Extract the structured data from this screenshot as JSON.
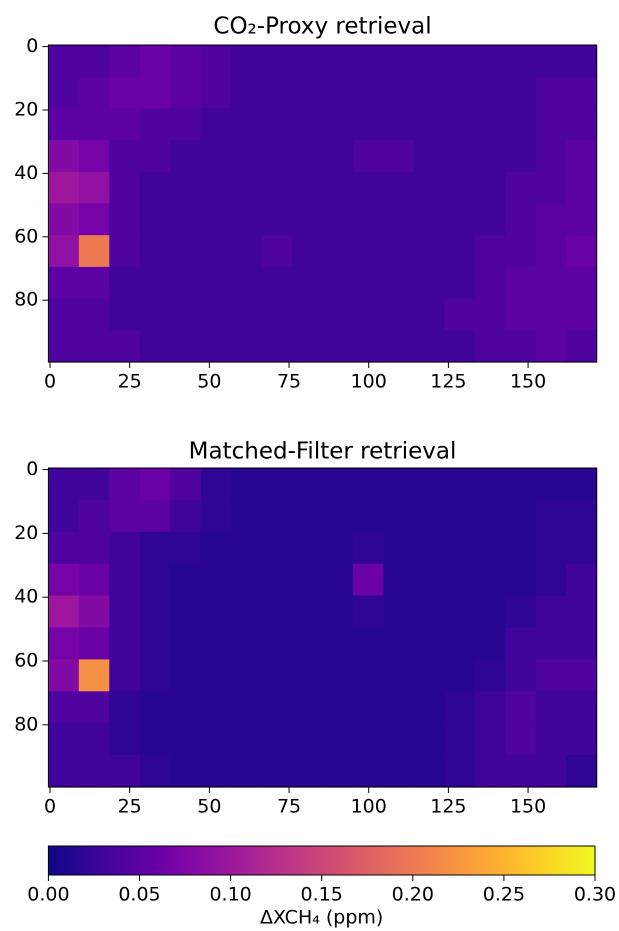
{
  "chart_data": [
    {
      "type": "heatmap",
      "title": "CO₂-Proxy retrieval",
      "cmap": "plasma",
      "xlim": [
        -0.5,
        171.5
      ],
      "ylim": [
        99.5,
        -0.5
      ],
      "xticks": [
        0,
        25,
        50,
        75,
        100,
        125,
        150
      ],
      "yticks": [
        0,
        20,
        40,
        60,
        80
      ],
      "values": [
        [
          0.04,
          0.04,
          0.05,
          0.06,
          0.05,
          0.04,
          0.03,
          0.03,
          0.03,
          0.03,
          0.03,
          0.03,
          0.03,
          0.03,
          0.03,
          0.03,
          0.03,
          0.03
        ],
        [
          0.04,
          0.05,
          0.06,
          0.06,
          0.05,
          0.04,
          0.03,
          0.03,
          0.03,
          0.03,
          0.03,
          0.03,
          0.03,
          0.03,
          0.03,
          0.03,
          0.04,
          0.04
        ],
        [
          0.05,
          0.05,
          0.05,
          0.04,
          0.04,
          0.03,
          0.03,
          0.03,
          0.03,
          0.03,
          0.03,
          0.03,
          0.03,
          0.03,
          0.03,
          0.03,
          0.04,
          0.04
        ],
        [
          0.08,
          0.07,
          0.04,
          0.04,
          0.03,
          0.03,
          0.03,
          0.03,
          0.03,
          0.03,
          0.04,
          0.04,
          0.03,
          0.03,
          0.03,
          0.03,
          0.04,
          0.05
        ],
        [
          0.1,
          0.09,
          0.04,
          0.03,
          0.03,
          0.03,
          0.03,
          0.03,
          0.03,
          0.03,
          0.03,
          0.03,
          0.03,
          0.03,
          0.03,
          0.04,
          0.04,
          0.05
        ],
        [
          0.08,
          0.07,
          0.04,
          0.03,
          0.03,
          0.03,
          0.03,
          0.03,
          0.03,
          0.03,
          0.03,
          0.03,
          0.03,
          0.03,
          0.03,
          0.04,
          0.05,
          0.05
        ],
        [
          0.09,
          0.2,
          0.04,
          0.03,
          0.03,
          0.03,
          0.03,
          0.04,
          0.03,
          0.03,
          0.03,
          0.03,
          0.03,
          0.03,
          0.04,
          0.04,
          0.05,
          0.06
        ],
        [
          0.05,
          0.05,
          0.03,
          0.03,
          0.03,
          0.03,
          0.03,
          0.03,
          0.03,
          0.03,
          0.03,
          0.03,
          0.03,
          0.03,
          0.04,
          0.05,
          0.05,
          0.05
        ],
        [
          0.04,
          0.04,
          0.03,
          0.03,
          0.03,
          0.03,
          0.03,
          0.03,
          0.03,
          0.03,
          0.03,
          0.03,
          0.03,
          0.04,
          0.04,
          0.05,
          0.05,
          0.05
        ],
        [
          0.04,
          0.04,
          0.04,
          0.03,
          0.03,
          0.03,
          0.03,
          0.03,
          0.03,
          0.03,
          0.03,
          0.03,
          0.03,
          0.03,
          0.04,
          0.04,
          0.05,
          0.04
        ]
      ]
    },
    {
      "type": "heatmap",
      "title": "Matched-Filter retrieval",
      "cmap": "plasma",
      "xlim": [
        -0.5,
        171.5
      ],
      "ylim": [
        99.5,
        -0.5
      ],
      "xticks": [
        0,
        25,
        50,
        75,
        100,
        125,
        150
      ],
      "yticks": [
        0,
        20,
        40,
        60,
        80
      ],
      "values": [
        [
          0.03,
          0.03,
          0.05,
          0.06,
          0.04,
          0.02,
          0.015,
          0.015,
          0.015,
          0.015,
          0.015,
          0.015,
          0.015,
          0.015,
          0.015,
          0.015,
          0.015,
          0.015
        ],
        [
          0.03,
          0.04,
          0.05,
          0.05,
          0.03,
          0.02,
          0.015,
          0.015,
          0.015,
          0.015,
          0.015,
          0.015,
          0.015,
          0.015,
          0.015,
          0.015,
          0.02,
          0.02
        ],
        [
          0.04,
          0.04,
          0.03,
          0.02,
          0.02,
          0.015,
          0.015,
          0.015,
          0.015,
          0.015,
          0.02,
          0.015,
          0.015,
          0.015,
          0.015,
          0.015,
          0.02,
          0.02
        ],
        [
          0.07,
          0.06,
          0.03,
          0.02,
          0.015,
          0.015,
          0.015,
          0.015,
          0.015,
          0.015,
          0.06,
          0.015,
          0.015,
          0.015,
          0.015,
          0.015,
          0.02,
          0.03
        ],
        [
          0.1,
          0.08,
          0.03,
          0.02,
          0.015,
          0.015,
          0.015,
          0.015,
          0.015,
          0.015,
          0.02,
          0.015,
          0.015,
          0.015,
          0.015,
          0.02,
          0.03,
          0.03
        ],
        [
          0.07,
          0.06,
          0.03,
          0.02,
          0.015,
          0.015,
          0.015,
          0.015,
          0.015,
          0.015,
          0.015,
          0.015,
          0.015,
          0.015,
          0.015,
          0.03,
          0.03,
          0.03
        ],
        [
          0.08,
          0.22,
          0.03,
          0.02,
          0.015,
          0.015,
          0.015,
          0.015,
          0.015,
          0.015,
          0.015,
          0.015,
          0.015,
          0.015,
          0.02,
          0.03,
          0.04,
          0.04
        ],
        [
          0.04,
          0.04,
          0.02,
          0.015,
          0.015,
          0.015,
          0.015,
          0.015,
          0.015,
          0.015,
          0.015,
          0.015,
          0.015,
          0.02,
          0.03,
          0.04,
          0.03,
          0.03
        ],
        [
          0.03,
          0.03,
          0.02,
          0.015,
          0.015,
          0.015,
          0.015,
          0.015,
          0.015,
          0.015,
          0.015,
          0.015,
          0.015,
          0.02,
          0.03,
          0.04,
          0.03,
          0.03
        ],
        [
          0.03,
          0.03,
          0.03,
          0.02,
          0.015,
          0.015,
          0.015,
          0.015,
          0.015,
          0.015,
          0.015,
          0.015,
          0.015,
          0.02,
          0.03,
          0.03,
          0.03,
          0.02
        ]
      ]
    }
  ],
  "colorbar": {
    "label": "ΔXCH₄ (ppm)",
    "cmap": "plasma",
    "clim": [
      0,
      0.3
    ],
    "ticks": [
      {
        "value": 0,
        "label": "0.00"
      },
      {
        "value": 0.05,
        "label": "0.05"
      },
      {
        "value": 0.1,
        "label": "0.10"
      },
      {
        "value": 0.15,
        "label": "0.15"
      },
      {
        "value": 0.2,
        "label": "0.20"
      },
      {
        "value": 0.25,
        "label": "0.25"
      },
      {
        "value": 0.3,
        "label": "0.30"
      }
    ]
  }
}
